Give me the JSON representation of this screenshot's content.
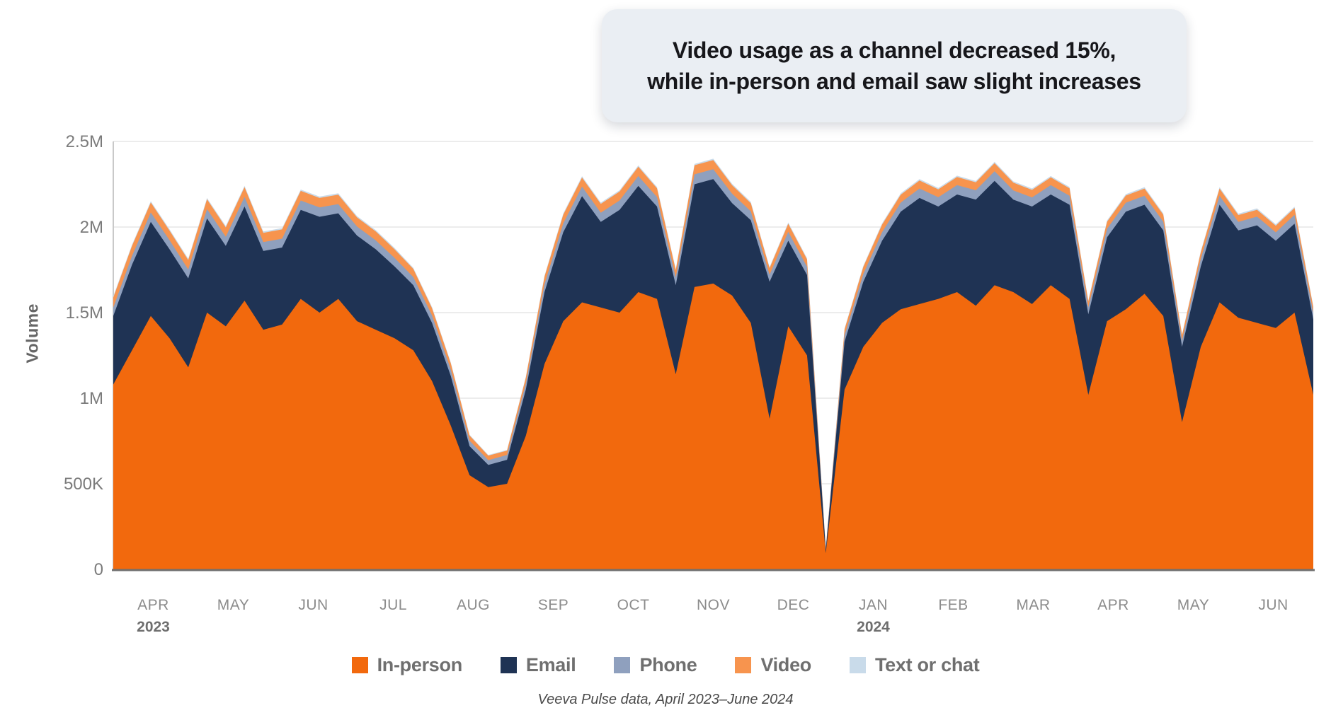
{
  "callout": {
    "text": "Video usage as a channel decreased 15%,\nwhile in-person and email saw slight increases"
  },
  "y_axis": {
    "title": "Volume",
    "ticks": [
      {
        "label": "0",
        "value": 0
      },
      {
        "label": "500K",
        "value": 0.5
      },
      {
        "label": "1M",
        "value": 1
      },
      {
        "label": "1.5M",
        "value": 1.5
      },
      {
        "label": "2M",
        "value": 2
      },
      {
        "label": "2.5M",
        "value": 2.5
      }
    ]
  },
  "x_axis": {
    "months": [
      {
        "label": "APR",
        "year": "2023"
      },
      {
        "label": "MAY"
      },
      {
        "label": "JUN"
      },
      {
        "label": "JUL"
      },
      {
        "label": "AUG"
      },
      {
        "label": "SEP"
      },
      {
        "label": "OCT"
      },
      {
        "label": "NOV"
      },
      {
        "label": "DEC"
      },
      {
        "label": "JAN",
        "year": "2024"
      },
      {
        "label": "FEB"
      },
      {
        "label": "MAR"
      },
      {
        "label": "APR"
      },
      {
        "label": "MAY"
      },
      {
        "label": "JUN"
      }
    ]
  },
  "legend": {
    "items": [
      {
        "label": "In-person",
        "color": "#F2690D"
      },
      {
        "label": "Email",
        "color": "#1F3354"
      },
      {
        "label": "Phone",
        "color": "#8FA0BE"
      },
      {
        "label": "Video",
        "color": "#F7944E"
      },
      {
        "label": "Text or chat",
        "color": "#C9DBEA"
      }
    ]
  },
  "footer": {
    "text": "Veeva Pulse data, April 2023–June 2024"
  },
  "chart_data": {
    "type": "area",
    "stacked": true,
    "title": "Video usage as a channel decreased 15%, while in-person and email saw slight increases",
    "xlabel": "",
    "ylabel": "Volume",
    "unit": "millions of interactions",
    "x_unit": "weekly points, April 2023 through June 2024",
    "ylim": [
      0,
      2.5
    ],
    "grid": true,
    "legend_position": "bottom",
    "series": [
      {
        "name": "In-person",
        "color": "#F2690D",
        "values": [
          1.08,
          1.28,
          1.48,
          1.35,
          1.18,
          1.5,
          1.42,
          1.57,
          1.4,
          1.43,
          1.58,
          1.5,
          1.58,
          1.45,
          1.4,
          1.35,
          1.28,
          1.1,
          0.84,
          0.55,
          0.48,
          0.5,
          0.78,
          1.2,
          1.45,
          1.56,
          1.53,
          1.5,
          1.62,
          1.58,
          1.14,
          1.65,
          1.67,
          1.6,
          1.44,
          0.88,
          1.42,
          1.25,
          0.095,
          1.05,
          1.3,
          1.44,
          1.52,
          1.55,
          1.58,
          1.62,
          1.54,
          1.66,
          1.62,
          1.55,
          1.66,
          1.58,
          1.02,
          1.45,
          1.52,
          1.61,
          1.48,
          0.86,
          1.3,
          1.56,
          1.47,
          1.44,
          1.41,
          1.5,
          1.02
        ]
      },
      {
        "name": "Email",
        "color": "#1F3354",
        "values": [
          0.4,
          0.5,
          0.55,
          0.52,
          0.52,
          0.55,
          0.47,
          0.55,
          0.46,
          0.45,
          0.52,
          0.56,
          0.5,
          0.5,
          0.47,
          0.42,
          0.38,
          0.34,
          0.29,
          0.17,
          0.13,
          0.14,
          0.27,
          0.42,
          0.52,
          0.62,
          0.5,
          0.6,
          0.62,
          0.54,
          0.52,
          0.6,
          0.61,
          0.54,
          0.6,
          0.8,
          0.5,
          0.47,
          0.018,
          0.28,
          0.38,
          0.48,
          0.57,
          0.62,
          0.54,
          0.57,
          0.62,
          0.61,
          0.54,
          0.57,
          0.53,
          0.55,
          0.47,
          0.49,
          0.57,
          0.52,
          0.5,
          0.44,
          0.47,
          0.57,
          0.51,
          0.57,
          0.51,
          0.52,
          0.44
        ]
      },
      {
        "name": "Phone",
        "color": "#8FA0BE",
        "values": [
          0.05,
          0.052,
          0.055,
          0.053,
          0.052,
          0.055,
          0.053,
          0.056,
          0.052,
          0.052,
          0.055,
          0.055,
          0.054,
          0.053,
          0.052,
          0.05,
          0.048,
          0.044,
          0.038,
          0.032,
          0.028,
          0.028,
          0.036,
          0.046,
          0.052,
          0.056,
          0.054,
          0.055,
          0.058,
          0.055,
          0.046,
          0.058,
          0.058,
          0.055,
          0.052,
          0.042,
          0.052,
          0.048,
          0.006,
          0.038,
          0.046,
          0.05,
          0.053,
          0.055,
          0.054,
          0.055,
          0.055,
          0.056,
          0.054,
          0.053,
          0.055,
          0.053,
          0.042,
          0.05,
          0.052,
          0.053,
          0.051,
          0.038,
          0.046,
          0.053,
          0.05,
          0.051,
          0.049,
          0.051,
          0.04
        ]
      },
      {
        "name": "Video",
        "color": "#F7944E",
        "values": [
          0.058,
          0.058,
          0.058,
          0.056,
          0.055,
          0.057,
          0.055,
          0.057,
          0.054,
          0.054,
          0.056,
          0.055,
          0.055,
          0.053,
          0.052,
          0.05,
          0.047,
          0.042,
          0.036,
          0.03,
          0.026,
          0.026,
          0.034,
          0.044,
          0.05,
          0.053,
          0.051,
          0.052,
          0.054,
          0.051,
          0.042,
          0.053,
          0.053,
          0.05,
          0.047,
          0.038,
          0.047,
          0.043,
          0.004,
          0.034,
          0.041,
          0.044,
          0.046,
          0.047,
          0.046,
          0.047,
          0.046,
          0.047,
          0.045,
          0.044,
          0.045,
          0.043,
          0.034,
          0.041,
          0.042,
          0.042,
          0.041,
          0.03,
          0.037,
          0.042,
          0.04,
          0.04,
          0.039,
          0.04,
          0.032
        ]
      },
      {
        "name": "Text or chat",
        "color": "#C9DBEA",
        "values": [
          0.008,
          0.008,
          0.008,
          0.008,
          0.008,
          0.008,
          0.008,
          0.008,
          0.008,
          0.008,
          0.008,
          0.008,
          0.008,
          0.008,
          0.008,
          0.008,
          0.007,
          0.007,
          0.006,
          0.005,
          0.004,
          0.004,
          0.005,
          0.007,
          0.008,
          0.008,
          0.008,
          0.008,
          0.008,
          0.008,
          0.007,
          0.008,
          0.008,
          0.008,
          0.008,
          0.006,
          0.008,
          0.007,
          0.002,
          0.006,
          0.007,
          0.008,
          0.008,
          0.008,
          0.008,
          0.008,
          0.008,
          0.008,
          0.008,
          0.008,
          0.008,
          0.008,
          0.006,
          0.008,
          0.008,
          0.008,
          0.008,
          0.005,
          0.007,
          0.008,
          0.008,
          0.008,
          0.008,
          0.008,
          0.006
        ]
      }
    ]
  }
}
